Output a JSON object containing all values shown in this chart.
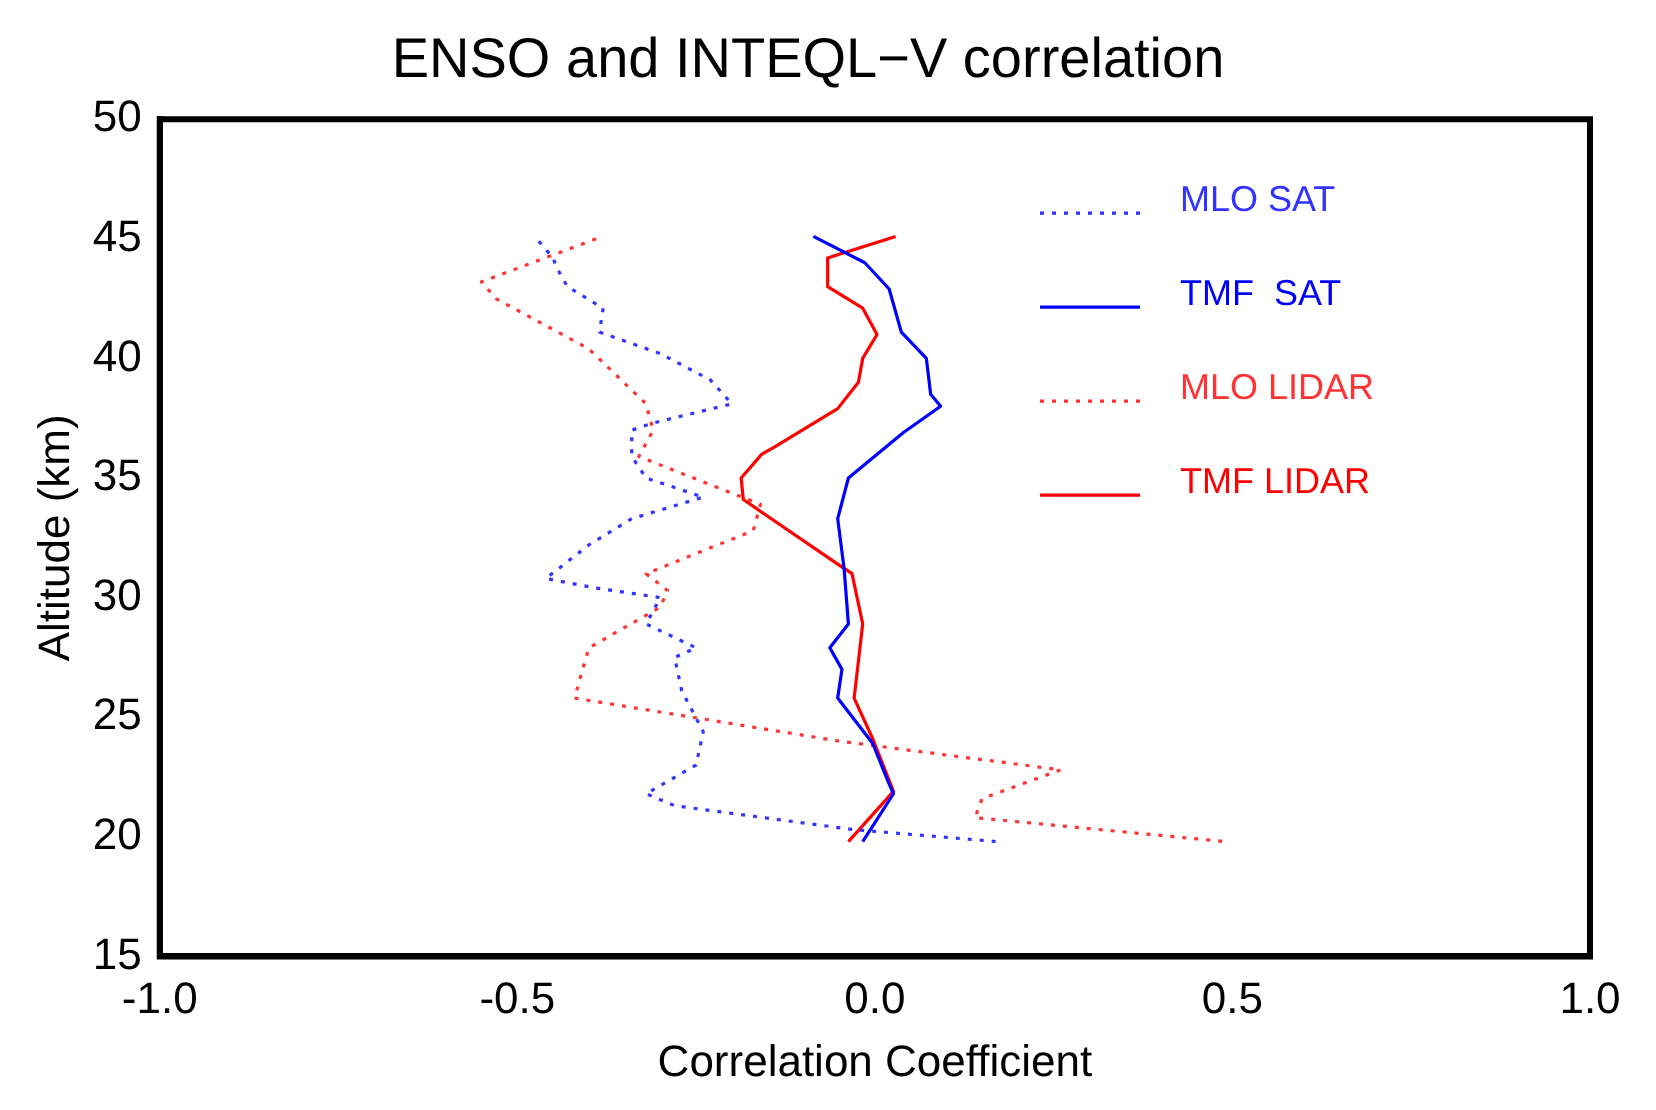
{
  "chart_data": {
    "type": "line",
    "title": "ENSO and INTEQL−V correlation",
    "xlabel": "Correlation Coefficient",
    "ylabel": "Altitude (km)",
    "xlim": [
      -1,
      1
    ],
    "xticks": [
      {
        "value": -1,
        "label": "-1.0"
      },
      {
        "value": -0.5,
        "label": "-0.5"
      },
      {
        "value": 0,
        "label": "0.0"
      },
      {
        "value": 0.5,
        "label": "0.5"
      },
      {
        "value": 1,
        "label": "1.0"
      }
    ],
    "ylim": [
      15,
      50
    ],
    "yticks": [
      15,
      20,
      25,
      30,
      35,
      40,
      45,
      50
    ],
    "grid": false,
    "legend": "top right",
    "marker": "none",
    "series": [
      {
        "name": "MLO SAT",
        "color": "#3333ff",
        "line_style": "dotted",
        "x": [
          -0.47,
          -0.45,
          -0.445,
          -0.43,
          -0.38,
          -0.385,
          -0.3,
          -0.23,
          -0.2,
          -0.31,
          -0.34,
          -0.34,
          -0.32,
          -0.24,
          -0.34,
          -0.4,
          -0.46,
          -0.39,
          -0.3,
          -0.32,
          -0.25,
          -0.28,
          -0.27,
          -0.24,
          -0.25,
          -0.32,
          -0.28,
          -0.03,
          0.17
        ],
        "values": [
          44.9,
          44.2,
          43.8,
          43.0,
          42.1,
          41.1,
          40.2,
          39.1,
          38.1,
          37.3,
          37.0,
          35.9,
          35.0,
          34.2,
          33.3,
          32.2,
          30.8,
          30.4,
          30.0,
          28.9,
          27.9,
          27.5,
          26.1,
          24.4,
          23.0,
          21.8,
          21.3,
          20.3,
          19.8
        ]
      },
      {
        "name": "TMF  SAT",
        "color": "#0000ff",
        "line_style": "solid",
        "x": [
          -0.086,
          -0.014,
          0.02,
          0.037,
          0.072,
          0.078,
          0.092,
          0.04,
          -0.037,
          -0.052,
          -0.043,
          -0.037,
          -0.063,
          -0.046,
          -0.052,
          -0.003,
          0.02,
          0.026,
          -0.017
        ],
        "values": [
          45.1,
          44.0,
          42.9,
          41.1,
          40.0,
          38.5,
          38.0,
          36.9,
          35.0,
          33.3,
          31.2,
          28.9,
          27.9,
          27.0,
          25.8,
          23.9,
          22.2,
          21.8,
          19.8
        ]
      },
      {
        "name": "MLO LIDAR",
        "color": "#ff3333",
        "line_style": "dotted",
        "x": [
          -0.39,
          -0.55,
          -0.53,
          -0.4,
          -0.32,
          -0.31,
          -0.33,
          -0.22,
          -0.16,
          -0.17,
          -0.32,
          -0.29,
          -0.3,
          -0.4,
          -0.42,
          -0.05,
          0.26,
          0.15,
          0.14,
          0.49
        ],
        "values": [
          45.0,
          43.2,
          42.5,
          40.4,
          38.1,
          37.0,
          35.9,
          34.6,
          33.9,
          32.8,
          31.0,
          30.3,
          29.6,
          27.9,
          25.8,
          24.0,
          22.8,
          21.6,
          20.8,
          19.8
        ]
      },
      {
        "name": "TMF LIDAR",
        "color": "#ff0000",
        "line_style": "solid",
        "x": [
          0.029,
          -0.066,
          -0.066,
          -0.017,
          0.003,
          -0.017,
          -0.023,
          -0.052,
          -0.14,
          -0.158,
          -0.187,
          -0.184,
          -0.052,
          -0.032,
          -0.017,
          -0.029,
          -0.003,
          0.026,
          -0.037
        ],
        "values": [
          45.1,
          44.2,
          43.0,
          42.1,
          41.0,
          40.0,
          39.0,
          37.9,
          36.3,
          36.0,
          35.0,
          34.1,
          31.4,
          31.0,
          28.9,
          25.8,
          24.1,
          21.9,
          19.8
        ]
      }
    ]
  }
}
